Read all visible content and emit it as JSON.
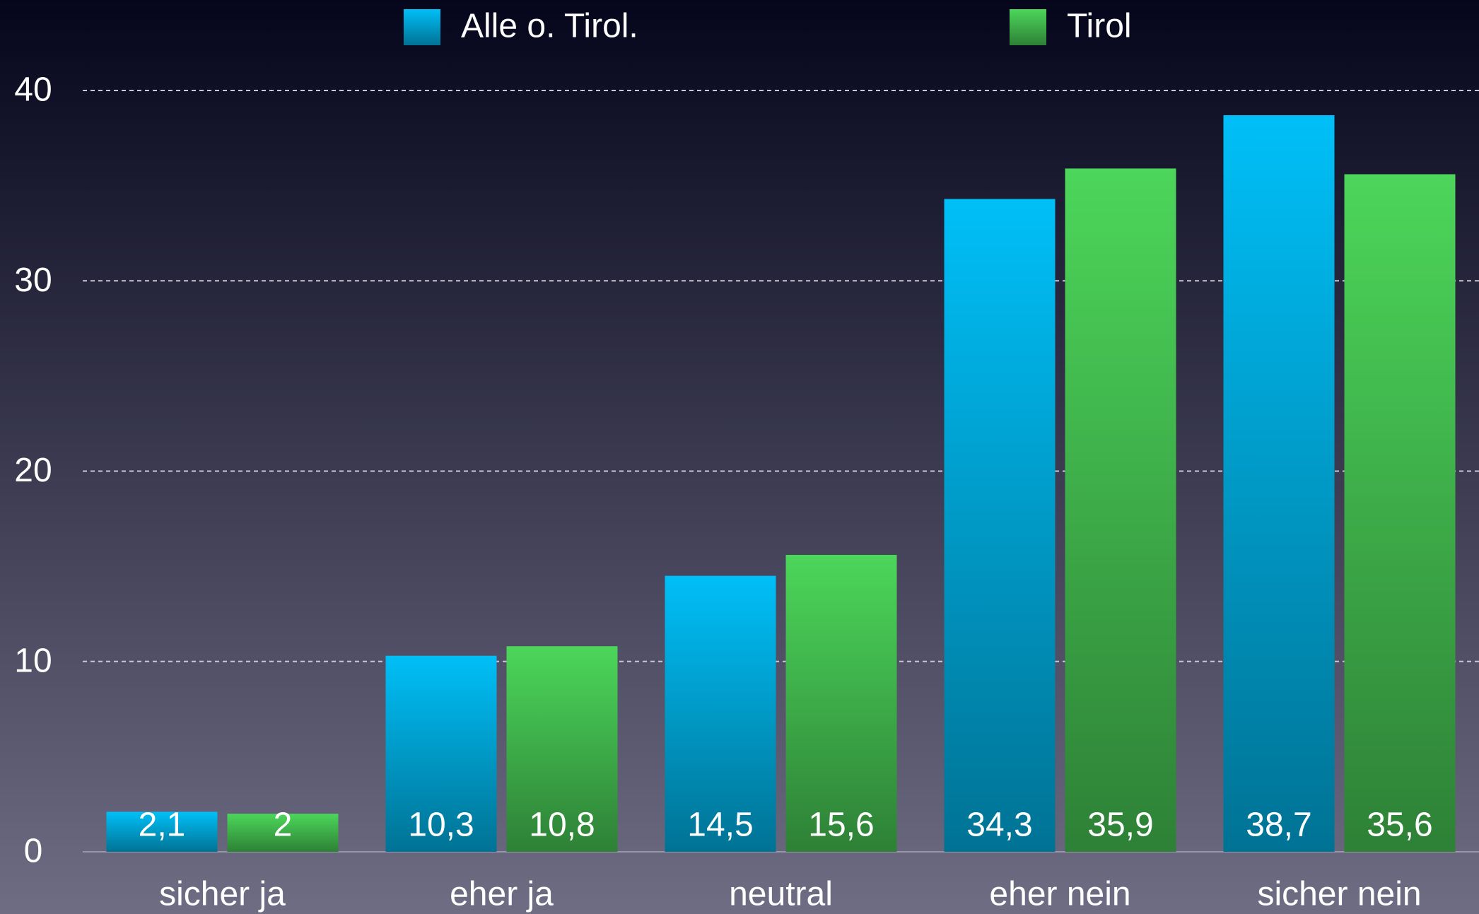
{
  "chart_data": {
    "type": "bar",
    "categories": [
      "sicher ja",
      "eher ja",
      "neutral",
      "eher nein",
      "sicher nein"
    ],
    "series": [
      {
        "name": "Alle o. Tirol.",
        "color": "#00bff7",
        "values": [
          2.1,
          10.3,
          14.5,
          34.3,
          38.7
        ],
        "value_labels": [
          "2,1",
          "10,3",
          "14,5",
          "34,3",
          "38,7"
        ]
      },
      {
        "name": "Tirol",
        "color": "#4cd65a",
        "values": [
          2,
          10.8,
          15.6,
          35.9,
          35.6
        ],
        "value_labels": [
          "2",
          "10,8",
          "15,6",
          "35,9",
          "35,6"
        ]
      }
    ],
    "ylim": [
      0,
      40
    ],
    "yticks": [
      0,
      10,
      20,
      30,
      40
    ],
    "grid": true,
    "legend": "top"
  }
}
